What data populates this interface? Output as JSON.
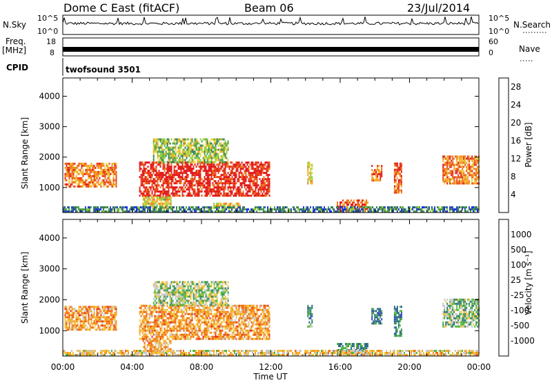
{
  "header": {
    "station": "Dome C East (fitACF)",
    "beam": "Beam 06",
    "date": "23/Jul/2014"
  },
  "aux_panels": {
    "nsky_label": "N.Sky",
    "nsky_ticks": [
      "10^5",
      "10^0"
    ],
    "nsearch_label": "N.Search",
    "nsearch_ticks": [
      "10^5",
      "10^0"
    ],
    "freq_label_1": "Freq.",
    "freq_label_2": "[MHz]",
    "freq_ticks": [
      "18",
      "8"
    ],
    "nave_label": "Nave",
    "nave_ticks": [
      "60",
      "0"
    ],
    "cpid_label": "CPID",
    "cpid_value": "twofsound 3501"
  },
  "chart_data": [
    {
      "type": "heatmap",
      "name": "power",
      "ylabel": "Slant Range [km]",
      "xlabel": "Time UT",
      "x_ticks": [
        "00:00",
        "04:00",
        "08:00",
        "12:00",
        "16:00",
        "20:00",
        "00:00"
      ],
      "xlim_hours": [
        0,
        24
      ],
      "y_ticks": [
        1000,
        2000,
        3000,
        4000
      ],
      "ylim_km": [
        180,
        4600
      ],
      "colorbar": {
        "label": "Power [dB]",
        "ticks": [
          "4",
          "8",
          "12",
          "16",
          "20",
          "24",
          "28"
        ],
        "range": [
          0,
          30
        ],
        "colors": [
          "#1f2bff",
          "#2b4fb3",
          "#3a7d5a",
          "#4fa24b",
          "#8fcf3a",
          "#e8d23a",
          "#f5a623",
          "#f07a1b",
          "#ea4a1a",
          "#e21a1a"
        ]
      },
      "echo_regions": [
        {
          "t0": 0.1,
          "t1": 3.1,
          "r0": 1000,
          "r1": 1800,
          "level": 0.75
        },
        {
          "t0": 4.4,
          "t1": 11.9,
          "r0": 700,
          "r1": 1800,
          "level": 0.95
        },
        {
          "t0": 5.2,
          "t1": 9.5,
          "r0": 1800,
          "r1": 2600,
          "level": 0.45
        },
        {
          "t0": 4.6,
          "t1": 6.2,
          "r0": 300,
          "r1": 700,
          "level": 0.55
        },
        {
          "t0": 8.6,
          "t1": 10.2,
          "r0": 300,
          "r1": 500,
          "level": 0.6
        },
        {
          "t0": 14.1,
          "t1": 14.4,
          "r0": 1100,
          "r1": 1800,
          "level": 0.6
        },
        {
          "t0": 15.8,
          "t1": 17.6,
          "r0": 200,
          "r1": 600,
          "level": 0.85
        },
        {
          "t0": 17.8,
          "t1": 18.4,
          "r0": 1200,
          "r1": 1700,
          "level": 0.8
        },
        {
          "t0": 19.1,
          "t1": 19.5,
          "r0": 800,
          "r1": 1800,
          "level": 0.8
        },
        {
          "t0": 21.9,
          "t1": 24.0,
          "r0": 1100,
          "r1": 2000,
          "level": 0.75
        },
        {
          "t0": 0.0,
          "t1": 24.0,
          "r0": 180,
          "r1": 330,
          "level": 0.25
        }
      ]
    },
    {
      "type": "heatmap",
      "name": "velocity",
      "ylabel": "Slant Range [km]",
      "xlabel": "Time UT",
      "x_ticks": [
        "00:00",
        "04:00",
        "08:00",
        "12:00",
        "16:00",
        "20:00",
        "00:00"
      ],
      "xlim_hours": [
        0,
        24
      ],
      "y_ticks": [
        1000,
        2000,
        3000,
        4000
      ],
      "ylim_km": [
        180,
        4600
      ],
      "colorbar": {
        "label": "Velocity [m s⁻¹]",
        "ticks": [
          "1000",
          "500",
          "100",
          "25",
          "-25",
          "-100",
          "-500",
          "-1000"
        ],
        "colors": [
          "#2b45b8",
          "#2a6a8a",
          "#3a8a5a",
          "#4fb83a",
          "#c8c8c8",
          "#f5c23a",
          "#f39a20",
          "#ef6a18",
          "#e8321a"
        ]
      },
      "echo_regions": [
        {
          "t0": 0.1,
          "t1": 3.1,
          "r0": 1000,
          "r1": 1800,
          "level": 0.72
        },
        {
          "t0": 4.4,
          "t1": 11.9,
          "r0": 700,
          "r1": 1800,
          "level": 0.72
        },
        {
          "t0": 5.2,
          "t1": 9.5,
          "r0": 1800,
          "r1": 2600,
          "level": 0.45
        },
        {
          "t0": 4.6,
          "t1": 6.2,
          "r0": 300,
          "r1": 700,
          "level": 0.7
        },
        {
          "t0": 14.1,
          "t1": 14.4,
          "r0": 1100,
          "r1": 1800,
          "level": 0.3
        },
        {
          "t0": 15.8,
          "t1": 17.6,
          "r0": 200,
          "r1": 600,
          "level": 0.3
        },
        {
          "t0": 17.8,
          "t1": 18.4,
          "r0": 1200,
          "r1": 1700,
          "level": 0.2
        },
        {
          "t0": 19.1,
          "t1": 19.5,
          "r0": 800,
          "r1": 1800,
          "level": 0.25
        },
        {
          "t0": 21.9,
          "t1": 24.0,
          "r0": 1100,
          "r1": 2000,
          "level": 0.4
        },
        {
          "t0": 0.0,
          "t1": 24.0,
          "r0": 180,
          "r1": 330,
          "level": 0.6
        }
      ]
    }
  ]
}
